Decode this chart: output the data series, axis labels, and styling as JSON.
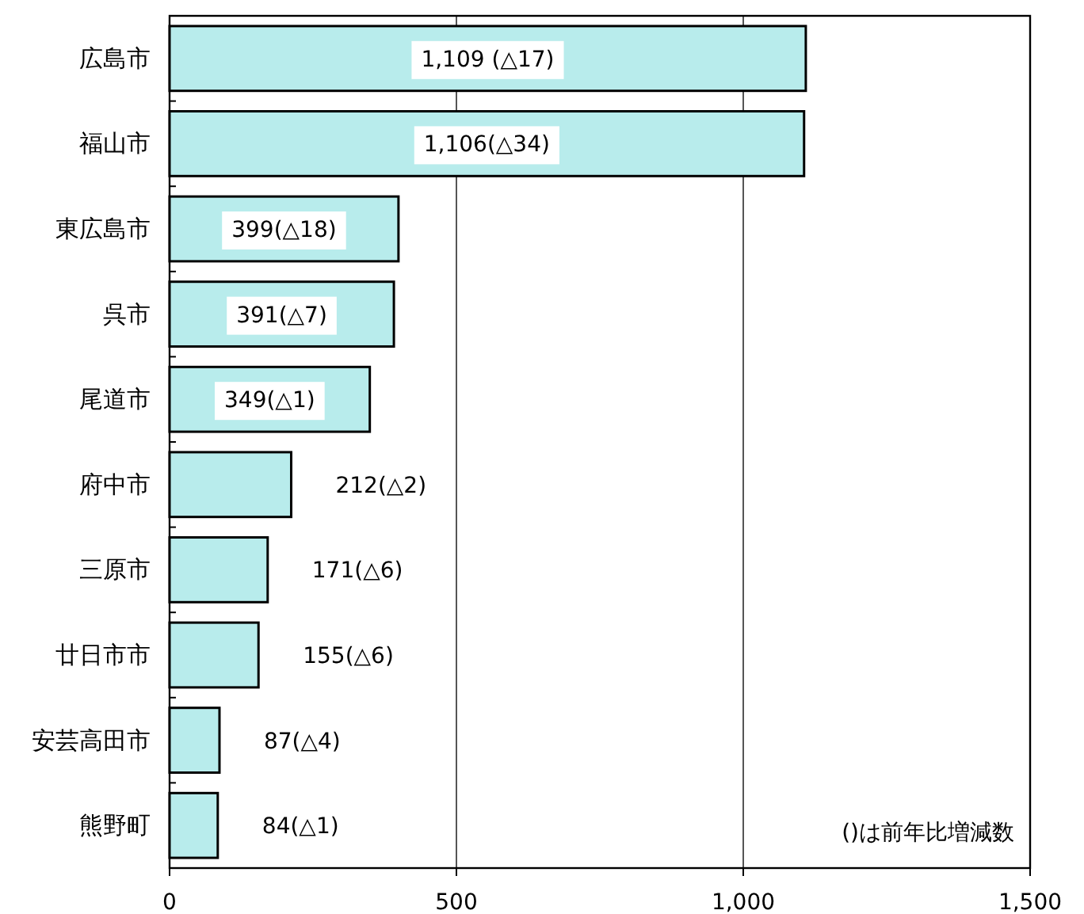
{
  "chart_data": {
    "type": "bar",
    "orientation": "horizontal",
    "categories": [
      "広島市",
      "福山市",
      "東広島市",
      "呉市",
      "尾道市",
      "府中市",
      "三原市",
      "廿日市市",
      "安芸高田市",
      "熊野町"
    ],
    "values": [
      1109,
      1106,
      399,
      391,
      349,
      212,
      171,
      155,
      87,
      84
    ],
    "value_labels": [
      "1,109 (△17)",
      "1,106(△34)",
      "399(△18)",
      "391(△7)",
      "349(△1)",
      "212(△2)",
      "171(△6)",
      "155(△6)",
      "87(△4)",
      "84(△1)"
    ],
    "color": "#b8ecec",
    "xlim": [
      0,
      1500
    ],
    "xticks": [
      0,
      500,
      {
        "value": 1000,
        "label": "1,000"
      },
      {
        "value": 1500,
        "label": "1,500"
      }
    ],
    "grid": "x",
    "annotations": [
      "()は前年比増減数"
    ]
  }
}
